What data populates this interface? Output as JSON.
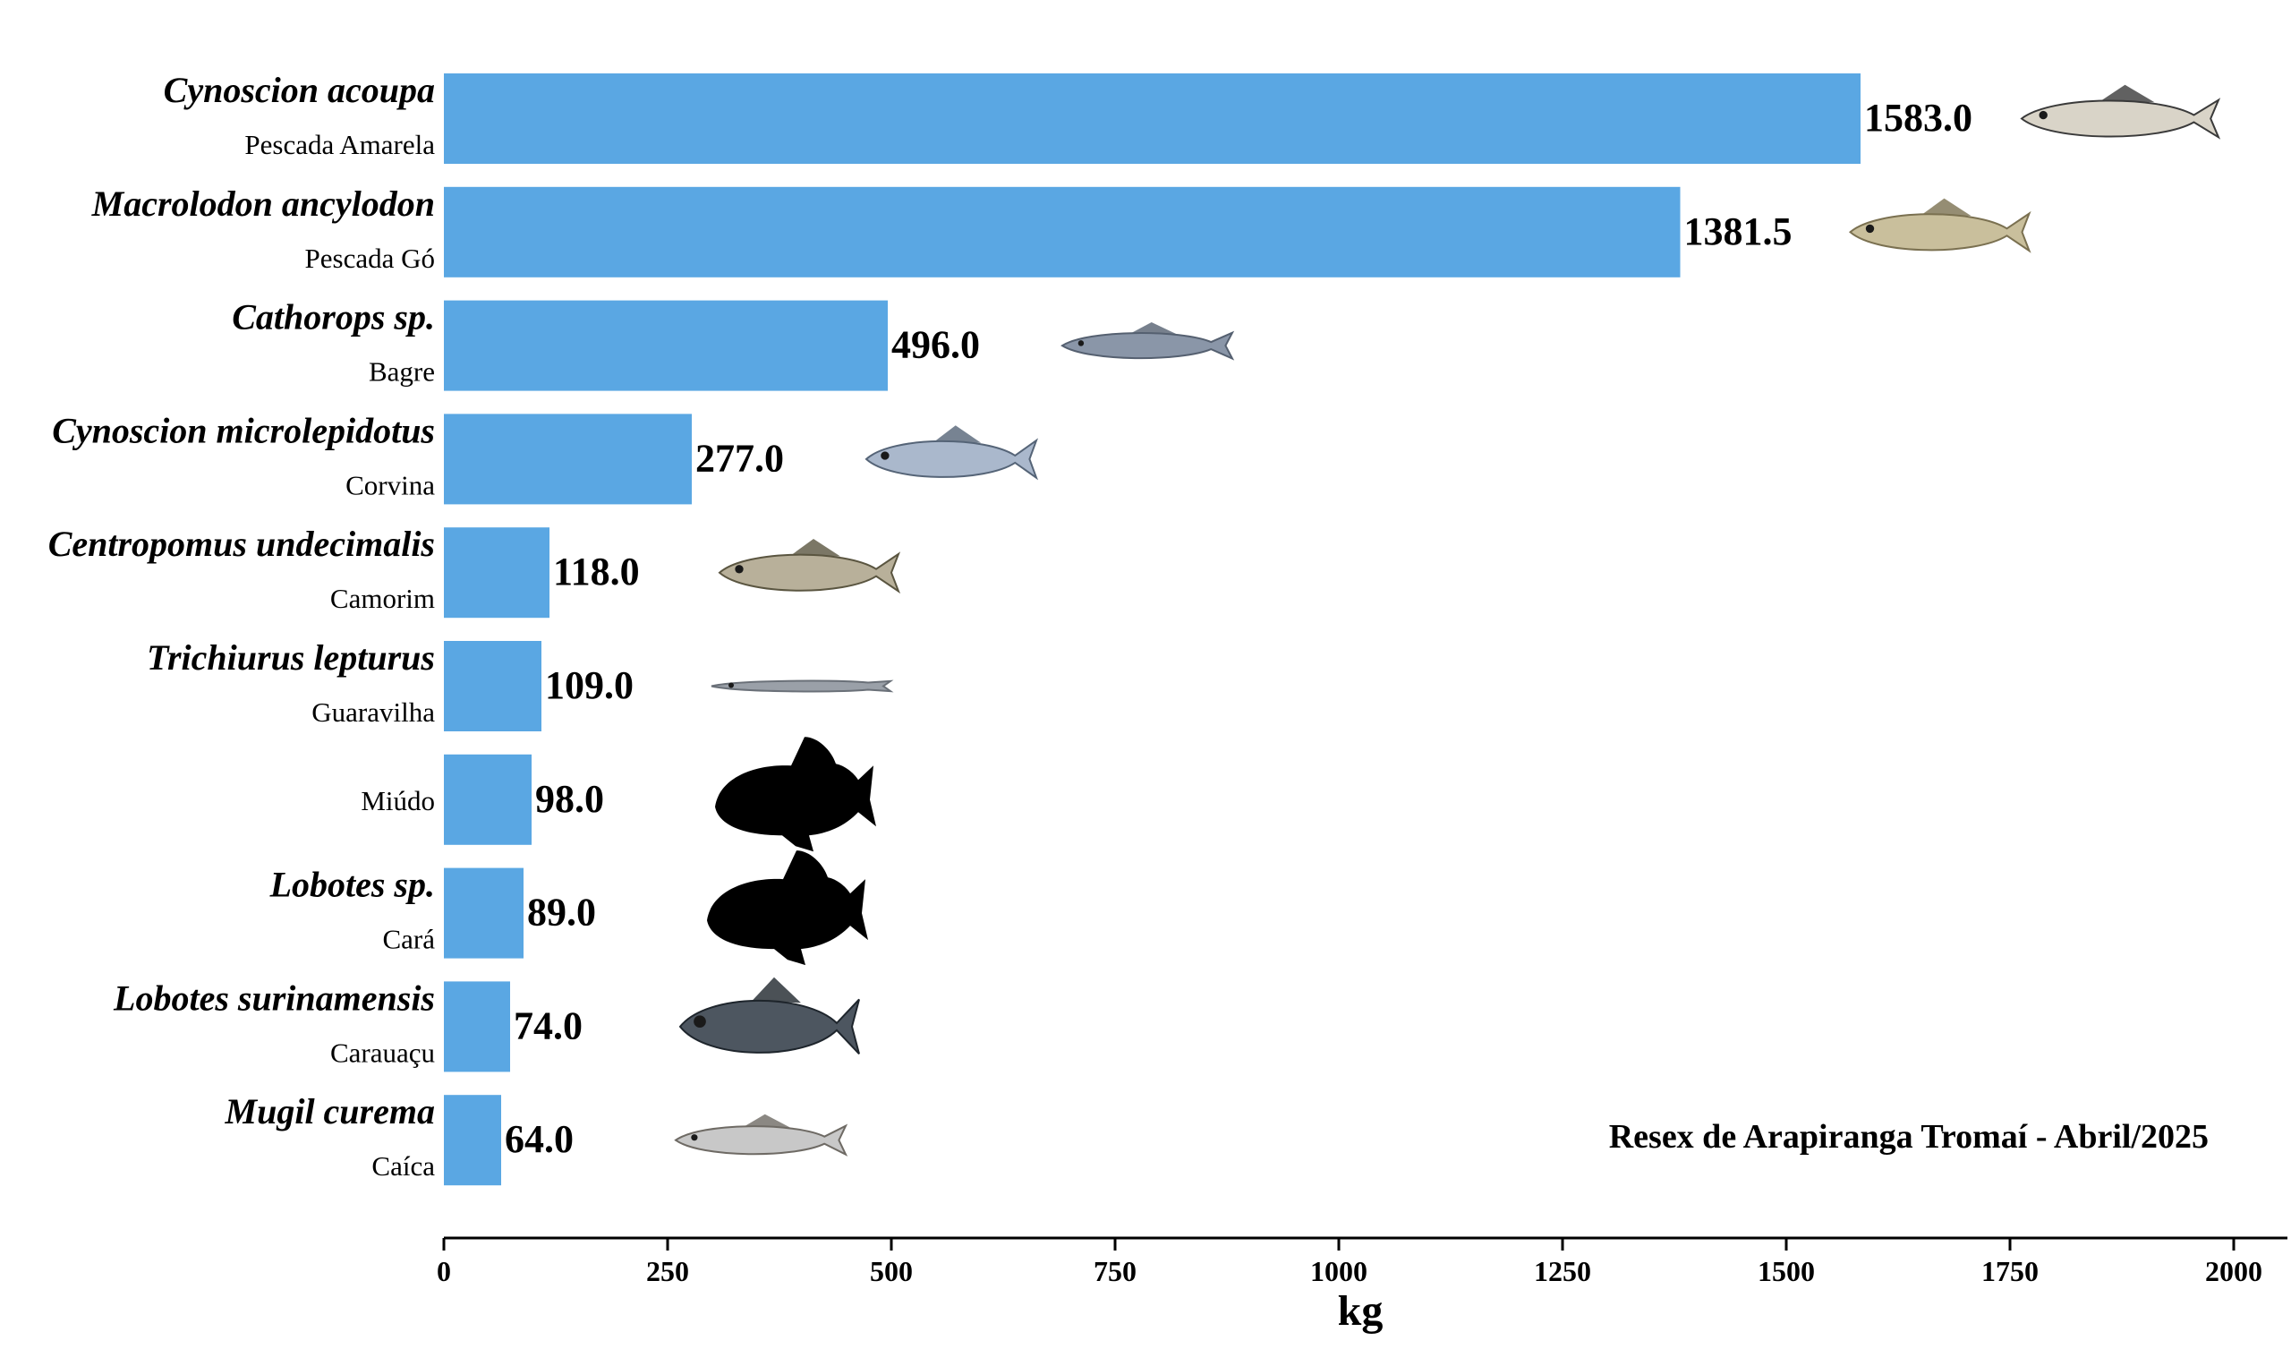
{
  "chart_data": {
    "type": "bar",
    "orientation": "horizontal",
    "categories": [
      {
        "scientific": "Cynoscion acoupa",
        "common": "Pescada Amarela"
      },
      {
        "scientific": "Macrolodon ancylodon",
        "common": "Pescada Gó"
      },
      {
        "scientific": "Cathorops sp.",
        "common": "Bagre"
      },
      {
        "scientific": "Cynoscion microlepidotus",
        "common": "Corvina"
      },
      {
        "scientific": "Centropomus undecimalis",
        "common": "Camorim"
      },
      {
        "scientific": "Trichiurus lepturus",
        "common": "Guaravilha"
      },
      {
        "scientific": "",
        "common": "Miúdo"
      },
      {
        "scientific": "Lobotes sp.",
        "common": "Cará"
      },
      {
        "scientific": "Lobotes surinamensis",
        "common": "Carauaçu"
      },
      {
        "scientific": "Mugil curema",
        "common": "Caíca"
      }
    ],
    "values": [
      1583.0,
      1381.5,
      496.0,
      277.0,
      118.0,
      109.0,
      98.0,
      89.0,
      74.0,
      64.0
    ],
    "value_labels": [
      "1583.0",
      "1381.5",
      "496.0",
      "277.0",
      "118.0",
      "109.0",
      "98.0",
      "89.0",
      "74.0",
      "64.0"
    ],
    "icons": [
      "weakfish-icon",
      "king-weakfish-icon",
      "catfish-icon",
      "corvina-icon",
      "snook-icon",
      "cutlassfish-icon",
      "fish-silhouette-icon",
      "fish-silhouette-icon",
      "tripletail-icon",
      "mullet-icon"
    ],
    "xlabel": "kg",
    "xlim": [
      0,
      2050
    ],
    "xticks": [
      0,
      250,
      500,
      750,
      1000,
      1250,
      1500,
      1750,
      2000
    ],
    "annotation": "Resex de Arapiranga Tromaí - Abril/2025",
    "grid": false,
    "bar_color": "#5aa7e3"
  }
}
